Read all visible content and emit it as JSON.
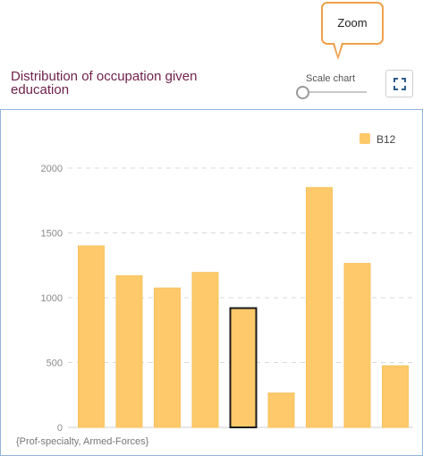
{
  "tooltip": {
    "text": "Zoom"
  },
  "header": {
    "title": "Distribution of occupation given education",
    "scale_label": "Scale chart",
    "fullscreen_icon": "fullscreen-expand-icon"
  },
  "slider": {
    "value": 0
  },
  "footer": {
    "label": "{Prof-specialty, Armed-Forces}"
  },
  "colors": {
    "bar": "#fec96b",
    "bar_stroke": "#f7c25e",
    "highlight_stroke": "#1a1a1a",
    "panel_border": "#8fb5dd"
  },
  "chart_data": {
    "type": "bar",
    "categories": [
      "",
      "",
      "",
      "",
      "",
      "",
      "",
      "",
      ""
    ],
    "series": [
      {
        "name": "B12",
        "values": [
          1400,
          1170,
          1075,
          1195,
          920,
          265,
          1850,
          1265,
          475
        ]
      }
    ],
    "highlighted_index": 4,
    "y_ticks": [
      "0",
      "500",
      "1000",
      "1500",
      "2000"
    ],
    "ylim": [
      0,
      2000
    ],
    "grid": true,
    "legend": "top-right"
  }
}
